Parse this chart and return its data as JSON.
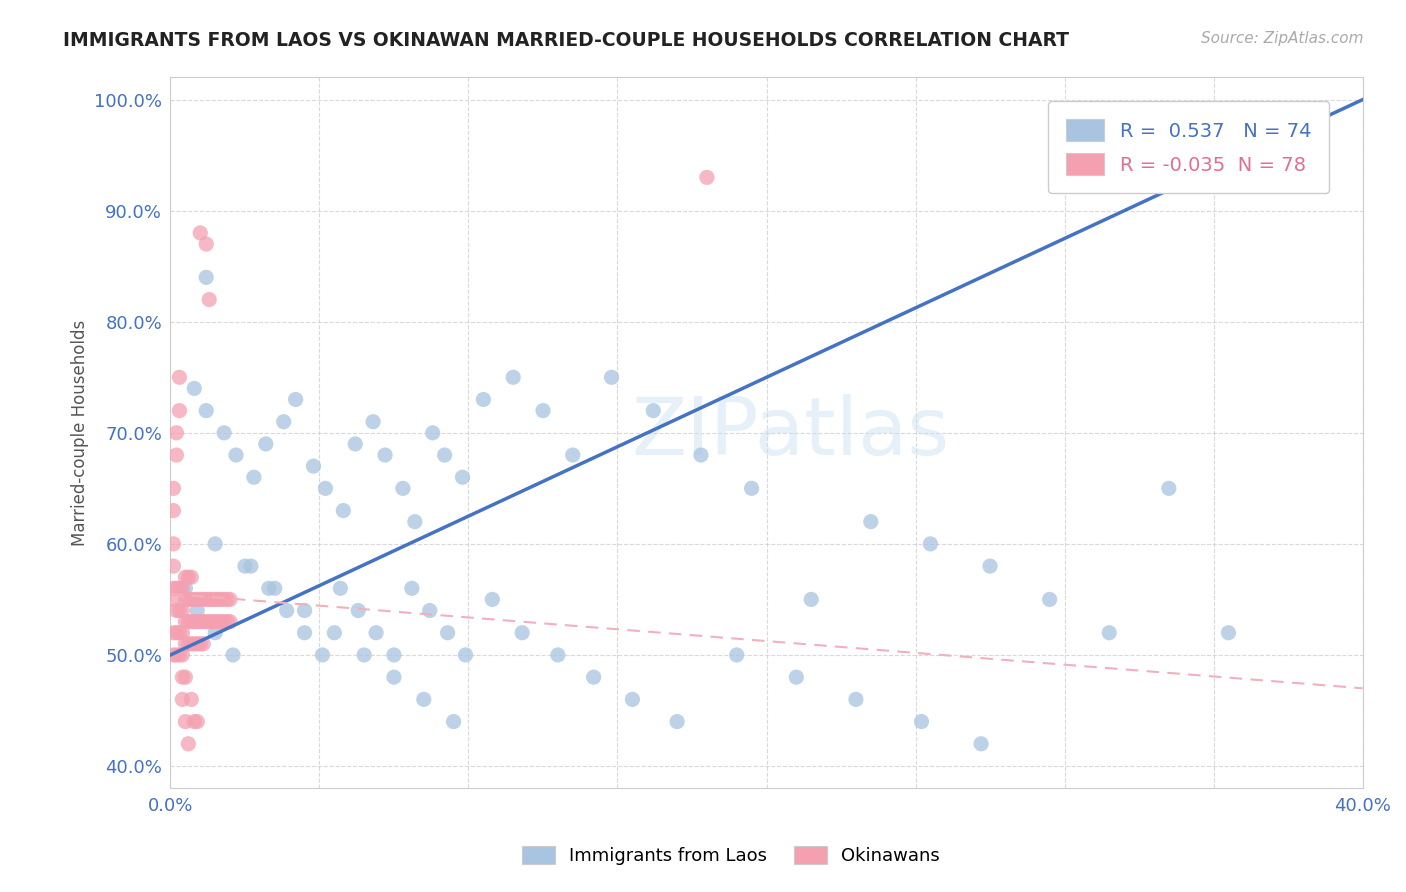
{
  "title": "IMMIGRANTS FROM LAOS VS OKINAWAN MARRIED-COUPLE HOUSEHOLDS CORRELATION CHART",
  "source": "Source: ZipAtlas.com",
  "xlabel_blue": "Immigrants from Laos",
  "xlabel_pink": "Okinawans",
  "ylabel": "Married-couple Households",
  "xlim": [
    0.0,
    0.4
  ],
  "ylim": [
    0.38,
    1.02
  ],
  "xticks": [
    0.0,
    0.05,
    0.1,
    0.15,
    0.2,
    0.25,
    0.3,
    0.35,
    0.4
  ],
  "yticks": [
    0.4,
    0.5,
    0.6,
    0.7,
    0.8,
    0.9,
    1.0
  ],
  "xtick_labels": [
    "0.0%",
    "",
    "",
    "",
    "",
    "",
    "",
    "",
    "40.0%"
  ],
  "ytick_labels": [
    "40.0%",
    "50.0%",
    "60.0%",
    "70.0%",
    "80.0%",
    "90.0%",
    "100.0%"
  ],
  "R_blue": 0.537,
  "N_blue": 74,
  "R_pink": -0.035,
  "N_pink": 78,
  "blue_color": "#a8c4e0",
  "pink_color": "#f4a0b0",
  "blue_line_color": "#4472c4",
  "pink_line_color": "#f0b0bc",
  "blue_line_y0": 0.5,
  "blue_line_y1": 1.0,
  "pink_line_y0": 0.555,
  "pink_line_y1": 0.47,
  "background_color": "#ffffff",
  "grid_color": "#d0d0d0",
  "blue_scatter_x": [
    0.008,
    0.012,
    0.018,
    0.022,
    0.028,
    0.032,
    0.038,
    0.042,
    0.048,
    0.052,
    0.058,
    0.062,
    0.068,
    0.072,
    0.078,
    0.082,
    0.088,
    0.092,
    0.098,
    0.105,
    0.115,
    0.125,
    0.135,
    0.148,
    0.162,
    0.178,
    0.195,
    0.215,
    0.235,
    0.255,
    0.275,
    0.295,
    0.315,
    0.335,
    0.355,
    0.005,
    0.009,
    0.015,
    0.021,
    0.027,
    0.033,
    0.039,
    0.045,
    0.051,
    0.057,
    0.063,
    0.069,
    0.075,
    0.081,
    0.087,
    0.093,
    0.099,
    0.108,
    0.118,
    0.13,
    0.142,
    0.155,
    0.17,
    0.19,
    0.21,
    0.23,
    0.252,
    0.272,
    0.015,
    0.025,
    0.035,
    0.045,
    0.055,
    0.065,
    0.075,
    0.085,
    0.095,
    0.35,
    0.012
  ],
  "blue_scatter_y": [
    0.74,
    0.72,
    0.7,
    0.68,
    0.66,
    0.69,
    0.71,
    0.73,
    0.67,
    0.65,
    0.63,
    0.69,
    0.71,
    0.68,
    0.65,
    0.62,
    0.7,
    0.68,
    0.66,
    0.73,
    0.75,
    0.72,
    0.68,
    0.75,
    0.72,
    0.68,
    0.65,
    0.55,
    0.62,
    0.6,
    0.58,
    0.55,
    0.52,
    0.65,
    0.52,
    0.56,
    0.54,
    0.52,
    0.5,
    0.58,
    0.56,
    0.54,
    0.52,
    0.5,
    0.56,
    0.54,
    0.52,
    0.5,
    0.56,
    0.54,
    0.52,
    0.5,
    0.55,
    0.52,
    0.5,
    0.48,
    0.46,
    0.44,
    0.5,
    0.48,
    0.46,
    0.44,
    0.42,
    0.6,
    0.58,
    0.56,
    0.54,
    0.52,
    0.5,
    0.48,
    0.46,
    0.44,
    0.99,
    0.84
  ],
  "pink_scatter_x": [
    0.001,
    0.001,
    0.001,
    0.001,
    0.002,
    0.002,
    0.002,
    0.002,
    0.003,
    0.003,
    0.003,
    0.003,
    0.004,
    0.004,
    0.004,
    0.004,
    0.005,
    0.005,
    0.005,
    0.005,
    0.006,
    0.006,
    0.006,
    0.006,
    0.007,
    0.007,
    0.007,
    0.007,
    0.008,
    0.008,
    0.008,
    0.009,
    0.009,
    0.009,
    0.01,
    0.01,
    0.01,
    0.011,
    0.011,
    0.011,
    0.012,
    0.012,
    0.013,
    0.013,
    0.014,
    0.014,
    0.015,
    0.015,
    0.016,
    0.016,
    0.017,
    0.017,
    0.018,
    0.018,
    0.019,
    0.019,
    0.02,
    0.02,
    0.001,
    0.001,
    0.001,
    0.001,
    0.002,
    0.002,
    0.003,
    0.003,
    0.004,
    0.004,
    0.005,
    0.005,
    0.006,
    0.007,
    0.008,
    0.009,
    0.01,
    0.18,
    0.012,
    0.013
  ],
  "pink_scatter_y": [
    0.55,
    0.52,
    0.5,
    0.56,
    0.54,
    0.52,
    0.5,
    0.56,
    0.54,
    0.52,
    0.5,
    0.56,
    0.54,
    0.52,
    0.5,
    0.56,
    0.55,
    0.53,
    0.51,
    0.57,
    0.55,
    0.53,
    0.51,
    0.57,
    0.55,
    0.53,
    0.51,
    0.57,
    0.55,
    0.53,
    0.51,
    0.55,
    0.53,
    0.51,
    0.55,
    0.53,
    0.51,
    0.55,
    0.53,
    0.51,
    0.55,
    0.53,
    0.55,
    0.53,
    0.55,
    0.53,
    0.55,
    0.53,
    0.55,
    0.53,
    0.55,
    0.53,
    0.55,
    0.53,
    0.55,
    0.53,
    0.55,
    0.53,
    0.58,
    0.6,
    0.63,
    0.65,
    0.68,
    0.7,
    0.72,
    0.75,
    0.48,
    0.46,
    0.44,
    0.48,
    0.42,
    0.46,
    0.44,
    0.44,
    0.88,
    0.93,
    0.87,
    0.82
  ]
}
